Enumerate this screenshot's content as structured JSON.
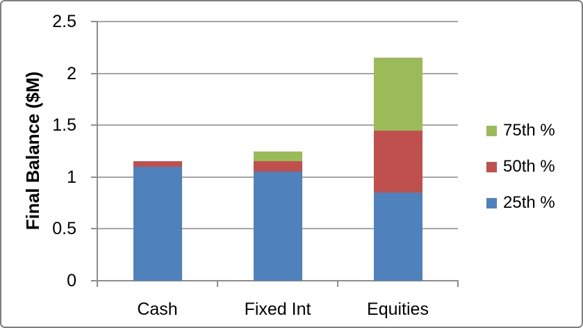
{
  "chart_data": {
    "type": "bar",
    "stacked": true,
    "title": "",
    "xlabel": "",
    "ylabel": "Final Balance ($M)",
    "categories": [
      "Cash",
      "Fixed Int",
      "Equities"
    ],
    "series": [
      {
        "name": "25th %",
        "color": "#4F81BD",
        "segment_values": [
          1.1,
          1.05,
          0.85
        ]
      },
      {
        "name": "50th %",
        "color": "#C0504D",
        "segment_values": [
          0.05,
          0.1,
          0.6
        ]
      },
      {
        "name": "75th %",
        "color": "#9BBB59",
        "segment_values": [
          0.0,
          0.1,
          0.7
        ]
      }
    ],
    "stack_totals": [
      1.15,
      1.25,
      2.15
    ],
    "cumulative_values": {
      "Cash": {
        "25th %": 1.1,
        "50th %": 1.15,
        "75th %": 1.15
      },
      "Fixed Int": {
        "25th %": 1.05,
        "50th %": 1.15,
        "75th %": 1.25
      },
      "Equities": {
        "25th %": 0.85,
        "50th %": 1.45,
        "75th %": 2.15
      }
    },
    "ylim": [
      0,
      2.5
    ],
    "yticks": [
      {
        "value": 0,
        "label": "0"
      },
      {
        "value": 0.5,
        "label": "0.5"
      },
      {
        "value": 1,
        "label": "1"
      },
      {
        "value": 1.5,
        "label": "1.5"
      },
      {
        "value": 2,
        "label": "2"
      },
      {
        "value": 2.5,
        "label": "2.5"
      }
    ],
    "grid": true,
    "legend_position": "right",
    "legend": [
      {
        "label": "75th %",
        "color": "#9BBB59"
      },
      {
        "label": "50th %",
        "color": "#C0504D"
      },
      {
        "label": "25th %",
        "color": "#4F81BD"
      }
    ]
  },
  "colors": {
    "bar_blue": "#4F81BD",
    "bar_red": "#C0504D",
    "bar_green": "#9BBB59",
    "gridline": "#A6A6A6",
    "axis": "#8C8C8C",
    "frame_border": "#7F7F7F",
    "text": "#000000",
    "background": "#FFFFFF"
  }
}
